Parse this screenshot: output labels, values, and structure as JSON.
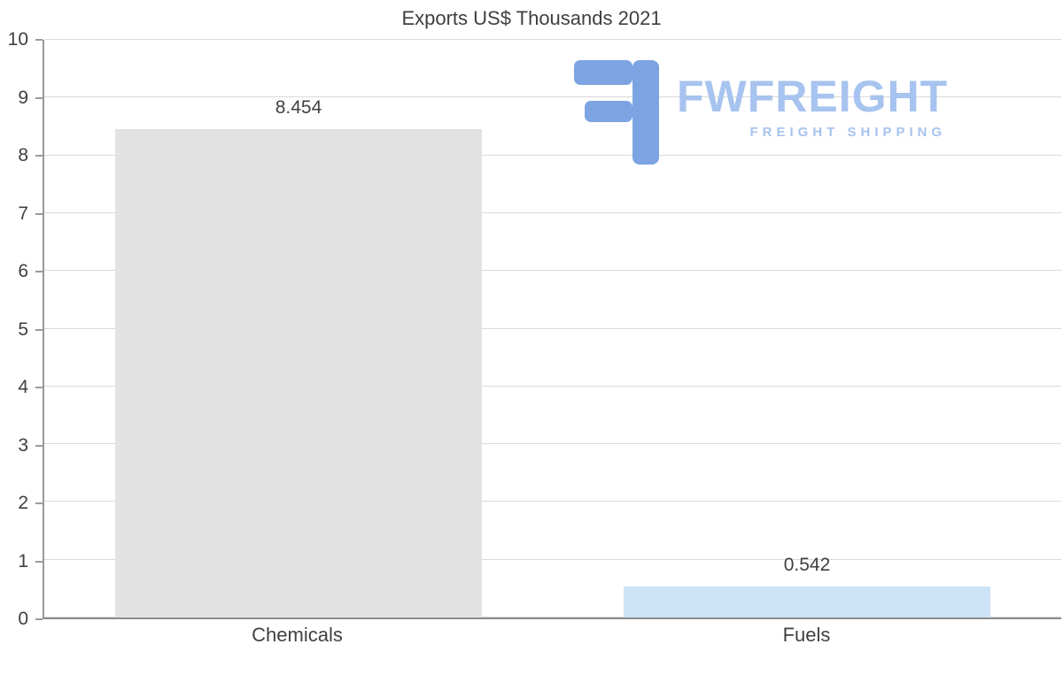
{
  "chart_data": {
    "type": "bar",
    "title": "Exports US$ Thousands 2021",
    "categories": [
      "Chemicals",
      "Fuels"
    ],
    "values": [
      8.454,
      0.542
    ],
    "value_labels": [
      "8.454",
      "0.542"
    ],
    "xlabel": "",
    "ylabel": "",
    "ylim": [
      0,
      10
    ],
    "yticks": [
      0,
      1,
      2,
      3,
      4,
      5,
      6,
      7,
      8,
      9,
      10
    ],
    "grid": "horizontal",
    "legend": "none",
    "bar_colors": [
      "#e2e2e2",
      "#cde3f6"
    ]
  },
  "logo": {
    "brand": "FWFREIGHT",
    "tagline": "FREIGHT SHIPPING",
    "brand_color": "#a7c3ef",
    "icon_color": "#7da4e2"
  }
}
